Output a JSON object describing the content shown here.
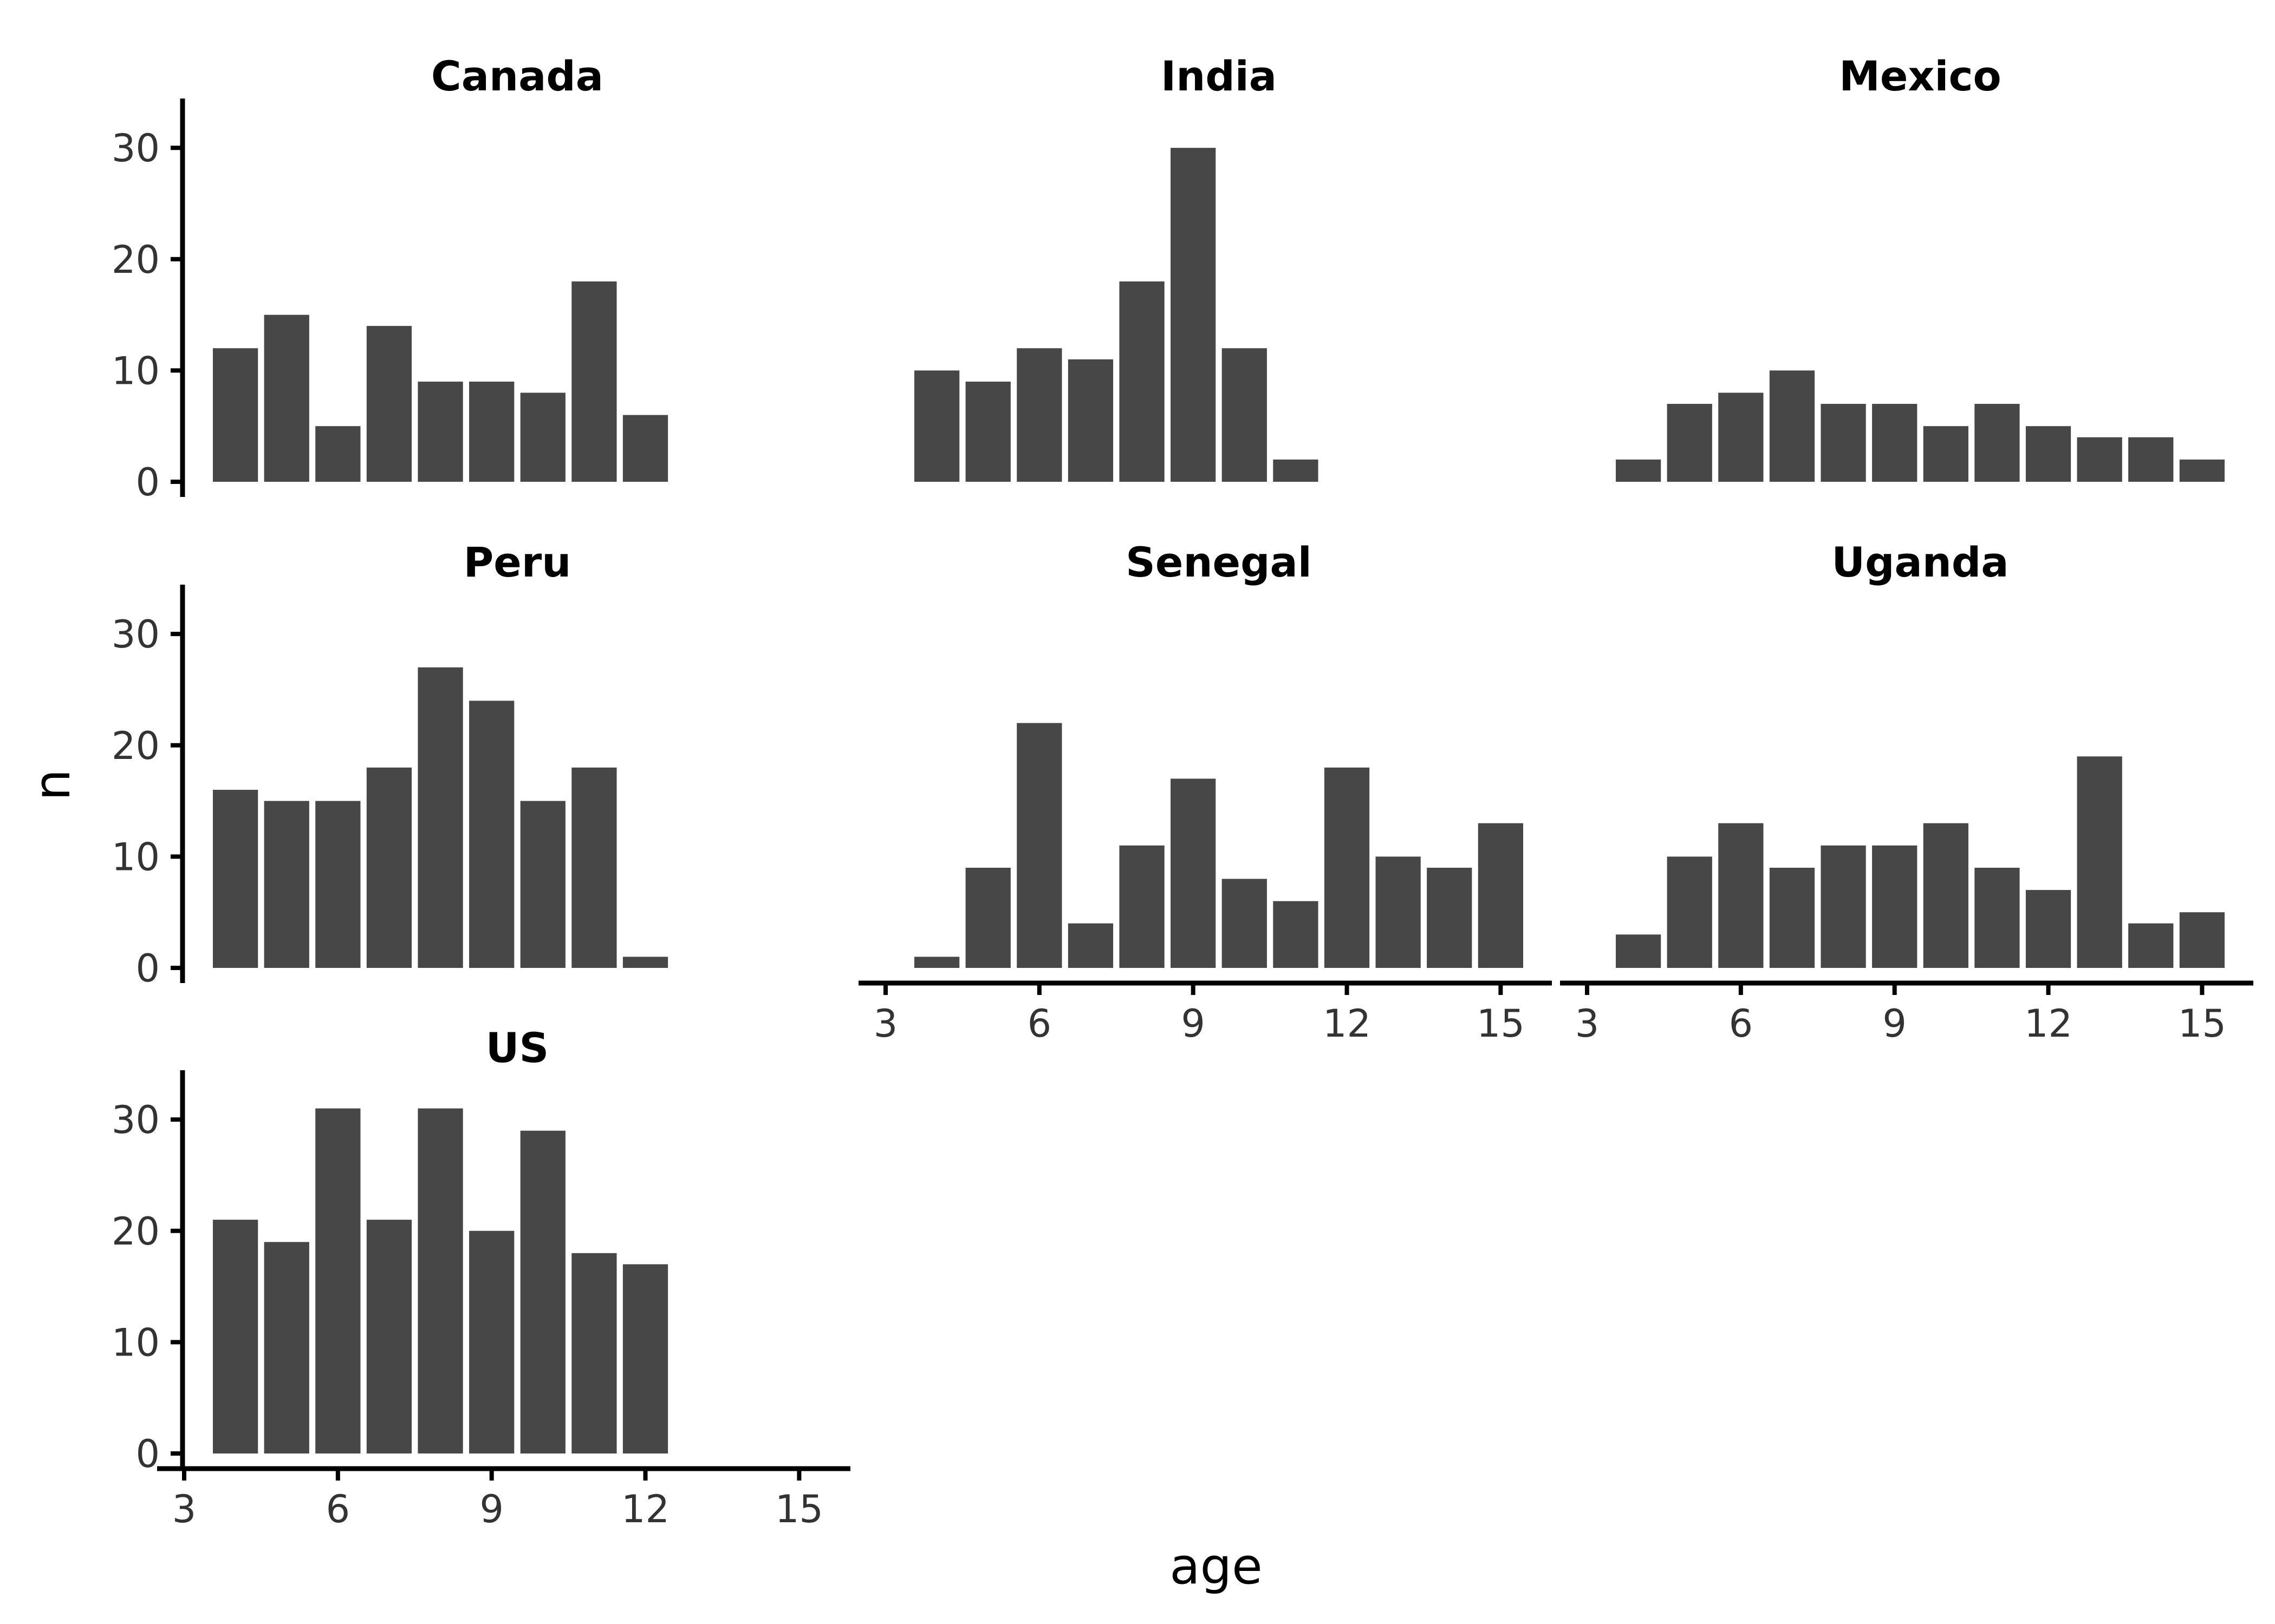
{
  "chart_data": {
    "type": "bar",
    "xlabel": "age",
    "ylabel": "n",
    "xlim": [
      3,
      16
    ],
    "ylim": [
      0,
      32
    ],
    "x_ticks": [
      3,
      6,
      9,
      12,
      15
    ],
    "y_ticks": [
      0,
      10,
      20,
      30
    ],
    "panels": [
      {
        "facet": "Canada",
        "x": [
          4,
          5,
          6,
          7,
          8,
          9,
          10,
          11,
          12
        ],
        "values": [
          12,
          15,
          5,
          14,
          9,
          9,
          8,
          18,
          6
        ]
      },
      {
        "facet": "India",
        "x": [
          4,
          5,
          6,
          7,
          8,
          9,
          10,
          11
        ],
        "values": [
          10,
          9,
          12,
          11,
          18,
          30,
          12,
          2
        ]
      },
      {
        "facet": "Mexico",
        "x": [
          4,
          5,
          6,
          7,
          8,
          9,
          10,
          11,
          12,
          13,
          14,
          15
        ],
        "values": [
          2,
          7,
          8,
          10,
          7,
          7,
          5,
          7,
          5,
          4,
          4,
          2
        ]
      },
      {
        "facet": "Peru",
        "x": [
          4,
          5,
          6,
          7,
          8,
          9,
          10,
          11,
          12
        ],
        "values": [
          16,
          15,
          15,
          18,
          27,
          24,
          15,
          18,
          1
        ]
      },
      {
        "facet": "Senegal",
        "x": [
          4,
          5,
          6,
          7,
          8,
          9,
          10,
          11,
          12,
          13,
          14,
          15
        ],
        "values": [
          1,
          9,
          22,
          4,
          11,
          17,
          8,
          6,
          18,
          10,
          9,
          13
        ]
      },
      {
        "facet": "Uganda",
        "x": [
          4,
          5,
          6,
          7,
          8,
          9,
          10,
          11,
          12,
          13,
          14,
          15
        ],
        "values": [
          3,
          10,
          13,
          9,
          11,
          11,
          13,
          9,
          7,
          19,
          4,
          5
        ]
      },
      {
        "facet": "US",
        "x": [
          4,
          5,
          6,
          7,
          8,
          9,
          10,
          11,
          12
        ],
        "values": [
          21,
          19,
          31,
          21,
          31,
          20,
          29,
          18,
          17
        ]
      }
    ]
  }
}
